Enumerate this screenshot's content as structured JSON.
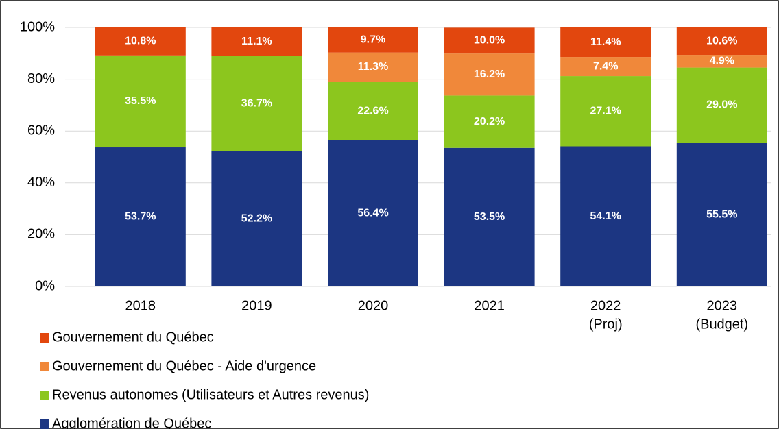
{
  "chart_data": {
    "type": "stacked_bar",
    "categories": [
      [
        "2018"
      ],
      [
        "2019"
      ],
      [
        "2020"
      ],
      [
        "2021"
      ],
      [
        "2022",
        "(Proj)"
      ],
      [
        "2023",
        "(Budget)"
      ]
    ],
    "series": [
      {
        "name": "Agglomération de Québec",
        "color": "#1c3682",
        "values": [
          53.7,
          52.2,
          56.4,
          53.5,
          54.1,
          55.5
        ],
        "value_labels": [
          "53.7%",
          "52.2%",
          "56.4%",
          "53.5%",
          "54.1%",
          "55.5%"
        ]
      },
      {
        "name": "Revenus autonomes (Utilisateurs et Autres revenus)",
        "color": "#8cc61e",
        "values": [
          35.5,
          36.7,
          22.6,
          20.2,
          27.1,
          29.0
        ],
        "value_labels": [
          "35.5%",
          "36.7%",
          "22.6%",
          "20.2%",
          "27.1%",
          "29.0%"
        ]
      },
      {
        "name": "Gouvernement du Québec - Aide d'urgence",
        "color": "#f0883a",
        "values": [
          null,
          null,
          11.3,
          16.2,
          7.4,
          4.9
        ],
        "value_labels": [
          null,
          null,
          "11.3%",
          "16.2%",
          "7.4%",
          "4.9%"
        ]
      },
      {
        "name": "Gouvernement du Québec",
        "color": "#e2470e",
        "values": [
          10.8,
          11.1,
          9.7,
          10.0,
          11.4,
          10.6
        ],
        "value_labels": [
          "10.8%",
          "11.1%",
          "9.7%",
          "10.0%",
          "11.4%",
          "10.6%"
        ]
      }
    ],
    "ylim": [
      0,
      100
    ],
    "yticks": [
      {
        "value": 0,
        "label": "0%"
      },
      {
        "value": 20,
        "label": "20%"
      },
      {
        "value": 40,
        "label": "40%"
      },
      {
        "value": 60,
        "label": "60%"
      },
      {
        "value": 80,
        "label": "80%"
      },
      {
        "value": 100,
        "label": "100%"
      }
    ],
    "grid": true
  }
}
